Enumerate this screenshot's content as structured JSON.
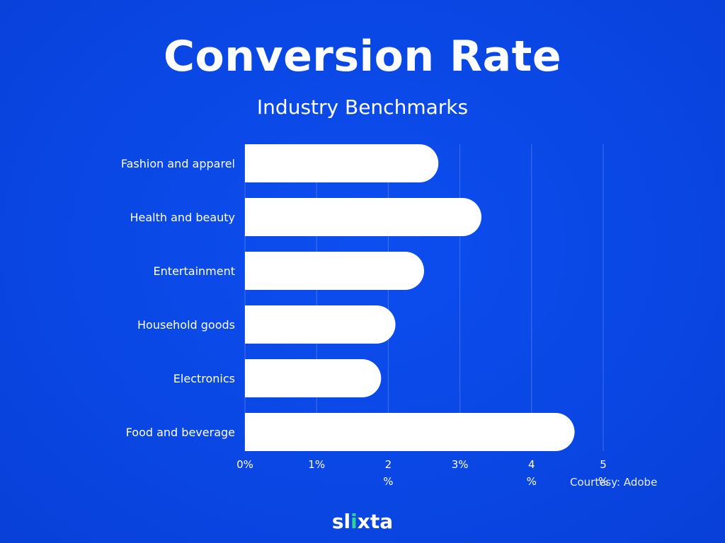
{
  "chart_data": {
    "type": "bar",
    "orientation": "horizontal",
    "title": "Conversion Rate",
    "subtitle": "Industry Benchmarks",
    "categories": [
      "Fashion and apparel",
      "Health and beauty",
      "Entertainment",
      "Household goods",
      "Electronics",
      "Food and beverage"
    ],
    "values": [
      2.7,
      3.3,
      2.5,
      2.1,
      1.9,
      4.6
    ],
    "unit": "%",
    "xlim": [
      0,
      5
    ],
    "x_ticks": [
      {
        "value": 0,
        "label": "0%"
      },
      {
        "value": 1,
        "label": "1%"
      },
      {
        "value": 2,
        "label": "2\n%"
      },
      {
        "value": 3,
        "label": "3%"
      },
      {
        "value": 4,
        "label": "4\n%"
      },
      {
        "value": 5,
        "label": "5\n%"
      }
    ],
    "grid": true,
    "legend": "none",
    "bar_color": "#ffffff",
    "background_color": "#0a47e4"
  },
  "source": "Courtesy: Adobe",
  "brand": {
    "parts": [
      "sl",
      "i",
      "xta"
    ],
    "accent_color": "#2fd39a"
  }
}
